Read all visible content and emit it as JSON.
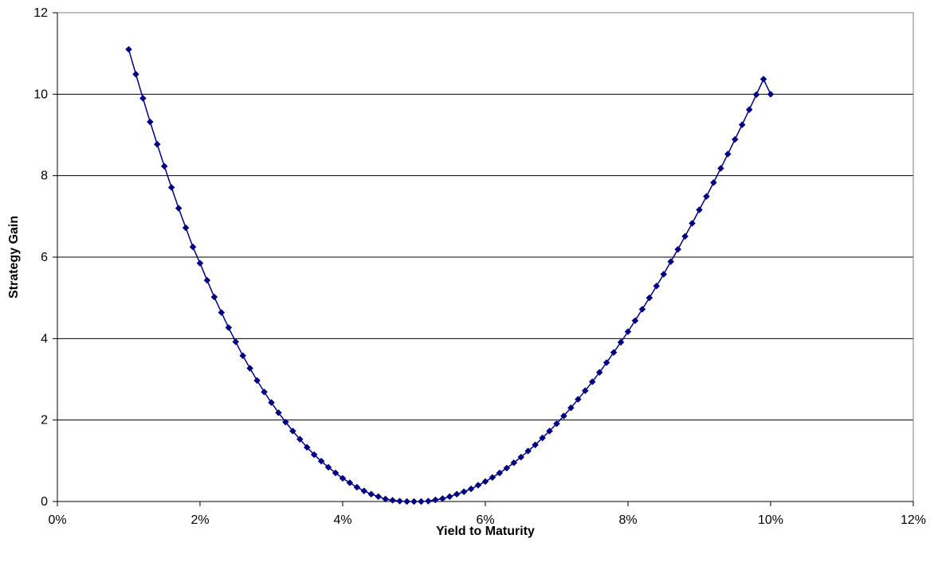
{
  "chart_data": {
    "type": "line",
    "title": "",
    "xlabel": "Yield to Maturity",
    "ylabel": "Strategy Gain",
    "xlim": [
      0,
      0.12
    ],
    "ylim": [
      0,
      12
    ],
    "x_ticks": [
      0,
      0.02,
      0.04,
      0.06,
      0.08,
      0.1,
      0.12
    ],
    "x_tick_labels": [
      "0%",
      "2%",
      "4%",
      "6%",
      "8%",
      "10%",
      "12%"
    ],
    "y_ticks": [
      0,
      2,
      4,
      6,
      8,
      10,
      12
    ],
    "y_tick_labels": [
      "0",
      "2",
      "4",
      "6",
      "8",
      "10",
      "12"
    ],
    "grid": "horizontal",
    "legend": "none",
    "series": [
      {
        "color": "#000080",
        "marker": "diamond",
        "x": [
          0.01,
          0.011,
          0.012,
          0.013,
          0.014,
          0.015,
          0.016,
          0.017,
          0.018,
          0.019,
          0.02,
          0.021,
          0.022,
          0.023,
          0.024,
          0.025,
          0.026,
          0.027,
          0.028,
          0.029,
          0.03,
          0.031,
          0.032,
          0.033,
          0.034,
          0.035,
          0.036,
          0.037,
          0.038,
          0.039,
          0.04,
          0.041,
          0.042,
          0.043,
          0.044,
          0.045,
          0.046,
          0.047,
          0.048,
          0.049,
          0.05,
          0.051,
          0.052,
          0.053,
          0.054,
          0.055,
          0.056,
          0.057,
          0.058,
          0.059,
          0.06,
          0.061,
          0.062,
          0.063,
          0.064,
          0.065,
          0.066,
          0.067,
          0.068,
          0.069,
          0.07,
          0.071,
          0.072,
          0.073,
          0.074,
          0.075,
          0.076,
          0.077,
          0.078,
          0.079,
          0.08,
          0.081,
          0.082,
          0.083,
          0.084,
          0.085,
          0.086,
          0.087,
          0.088,
          0.089,
          0.09,
          0.091,
          0.092,
          0.093,
          0.094,
          0.095,
          0.096,
          0.097,
          0.098,
          0.099,
          0.1
        ],
        "y": [
          11.1,
          10.49,
          9.9,
          9.32,
          8.77,
          8.23,
          7.71,
          7.2,
          6.72,
          6.25,
          5.85,
          5.43,
          5.02,
          4.64,
          4.27,
          3.92,
          3.58,
          3.27,
          2.97,
          2.69,
          2.43,
          2.18,
          1.95,
          1.73,
          1.53,
          1.33,
          1.15,
          0.99,
          0.84,
          0.7,
          0.57,
          0.46,
          0.35,
          0.26,
          0.18,
          0.12,
          0.06,
          0.03,
          0.01,
          0.0,
          0.0,
          0.0,
          0.01,
          0.04,
          0.07,
          0.12,
          0.18,
          0.24,
          0.31,
          0.4,
          0.49,
          0.59,
          0.7,
          0.82,
          0.95,
          1.09,
          1.24,
          1.39,
          1.56,
          1.73,
          1.91,
          2.1,
          2.3,
          2.51,
          2.72,
          2.94,
          3.17,
          3.41,
          3.66,
          3.91,
          4.17,
          4.44,
          4.72,
          5.0,
          5.29,
          5.58,
          5.89,
          6.19,
          6.51,
          6.83,
          7.16,
          7.49,
          7.83,
          8.18,
          8.53,
          8.89,
          9.25,
          9.62,
          9.99,
          10.37,
          10.0
        ]
      }
    ]
  }
}
